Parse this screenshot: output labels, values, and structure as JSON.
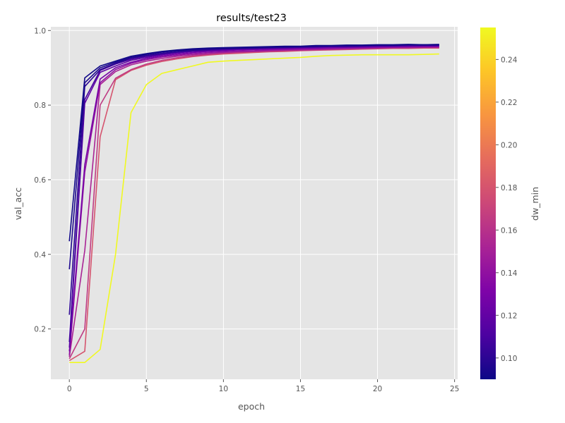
{
  "chart_data": {
    "type": "line",
    "title": "results/test23",
    "xlabel": "epoch",
    "ylabel": "val_acc",
    "xlim": [
      -1.2,
      25.2
    ],
    "ylim": [
      0.065,
      1.01
    ],
    "x_ticks": [
      0,
      5,
      10,
      15,
      20,
      25
    ],
    "y_ticks": [
      0.2,
      0.4,
      0.6,
      0.8,
      1.0
    ],
    "y_tick_labels": [
      "0.2",
      "0.4",
      "0.6",
      "0.8",
      "1.0"
    ],
    "grid": true,
    "background": "#e5e5e5",
    "colormap": "plasma",
    "colorbar": {
      "label": "dw_min",
      "range": [
        0.09,
        0.255
      ],
      "ticks": [
        0.1,
        0.12,
        0.14,
        0.16,
        0.18,
        0.2,
        0.22,
        0.24
      ],
      "tick_labels": [
        "0.10",
        "0.12",
        "0.14",
        "0.16",
        "0.18",
        "0.20",
        "0.22",
        "0.24"
      ]
    },
    "x": [
      0,
      1,
      2,
      3,
      4,
      5,
      6,
      7,
      8,
      9,
      10,
      11,
      12,
      13,
      14,
      15,
      16,
      17,
      18,
      19,
      20,
      21,
      22,
      23,
      24
    ],
    "series": [
      {
        "dw_min": 0.091,
        "values": [
          0.435,
          0.873,
          0.905,
          0.918,
          0.931,
          0.938,
          0.944,
          0.948,
          0.951,
          0.953,
          0.954,
          0.955,
          0.956,
          0.957,
          0.958,
          0.958,
          0.96,
          0.96,
          0.961,
          0.961,
          0.962,
          0.962,
          0.963,
          0.962,
          0.962
        ]
      },
      {
        "dw_min": 0.095,
        "values": [
          0.36,
          0.86,
          0.9,
          0.915,
          0.928,
          0.936,
          0.942,
          0.946,
          0.949,
          0.951,
          0.952,
          0.953,
          0.954,
          0.955,
          0.956,
          0.957,
          0.958,
          0.959,
          0.96,
          0.96,
          0.961,
          0.961,
          0.962,
          0.962,
          0.963
        ]
      },
      {
        "dw_min": 0.1,
        "values": [
          0.238,
          0.85,
          0.895,
          0.912,
          0.926,
          0.933,
          0.939,
          0.943,
          0.947,
          0.949,
          0.951,
          0.952,
          0.953,
          0.954,
          0.955,
          0.956,
          0.957,
          0.958,
          0.958,
          0.959,
          0.96,
          0.96,
          0.961,
          0.961,
          0.961
        ]
      },
      {
        "dw_min": 0.108,
        "values": [
          0.165,
          0.815,
          0.893,
          0.91,
          0.923,
          0.931,
          0.937,
          0.942,
          0.945,
          0.948,
          0.95,
          0.951,
          0.952,
          0.953,
          0.954,
          0.955,
          0.956,
          0.957,
          0.957,
          0.958,
          0.959,
          0.959,
          0.96,
          0.96,
          0.96
        ]
      },
      {
        "dw_min": 0.118,
        "values": [
          0.15,
          0.805,
          0.888,
          0.905,
          0.92,
          0.928,
          0.935,
          0.94,
          0.944,
          0.946,
          0.948,
          0.95,
          0.951,
          0.952,
          0.953,
          0.954,
          0.955,
          0.956,
          0.956,
          0.957,
          0.958,
          0.958,
          0.959,
          0.959,
          0.959
        ]
      },
      {
        "dw_min": 0.128,
        "values": [
          0.14,
          0.64,
          0.87,
          0.9,
          0.915,
          0.925,
          0.932,
          0.937,
          0.941,
          0.944,
          0.946,
          0.948,
          0.949,
          0.95,
          0.951,
          0.952,
          0.953,
          0.954,
          0.955,
          0.955,
          0.956,
          0.957,
          0.957,
          0.958,
          0.958
        ]
      },
      {
        "dw_min": 0.14,
        "values": [
          0.13,
          0.62,
          0.86,
          0.895,
          0.912,
          0.922,
          0.929,
          0.934,
          0.938,
          0.941,
          0.943,
          0.945,
          0.946,
          0.948,
          0.949,
          0.95,
          0.951,
          0.952,
          0.953,
          0.954,
          0.955,
          0.955,
          0.956,
          0.956,
          0.957
        ]
      },
      {
        "dw_min": 0.152,
        "values": [
          0.125,
          0.41,
          0.855,
          0.89,
          0.908,
          0.918,
          0.925,
          0.931,
          0.935,
          0.938,
          0.941,
          0.943,
          0.944,
          0.946,
          0.947,
          0.948,
          0.949,
          0.95,
          0.951,
          0.952,
          0.953,
          0.954,
          0.954,
          0.955,
          0.955
        ]
      },
      {
        "dw_min": 0.165,
        "values": [
          0.12,
          0.2,
          0.8,
          0.872,
          0.895,
          0.91,
          0.92,
          0.927,
          0.932,
          0.936,
          0.939,
          0.941,
          0.943,
          0.944,
          0.946,
          0.947,
          0.948,
          0.949,
          0.95,
          0.951,
          0.952,
          0.953,
          0.953,
          0.954,
          0.954
        ]
      },
      {
        "dw_min": 0.18,
        "values": [
          0.115,
          0.14,
          0.715,
          0.868,
          0.893,
          0.907,
          0.917,
          0.924,
          0.93,
          0.934,
          0.937,
          0.939,
          0.941,
          0.943,
          0.944,
          0.946,
          0.947,
          0.948,
          0.949,
          0.95,
          0.951,
          0.952,
          0.952,
          0.953,
          0.953
        ]
      },
      {
        "dw_min": 0.255,
        "values": [
          0.11,
          0.11,
          0.145,
          0.4,
          0.78,
          0.855,
          0.885,
          0.895,
          0.905,
          0.915,
          0.918,
          0.92,
          0.922,
          0.924,
          0.926,
          0.928,
          0.931,
          0.933,
          0.934,
          0.935,
          0.935,
          0.935,
          0.935,
          0.936,
          0.937
        ]
      }
    ]
  }
}
